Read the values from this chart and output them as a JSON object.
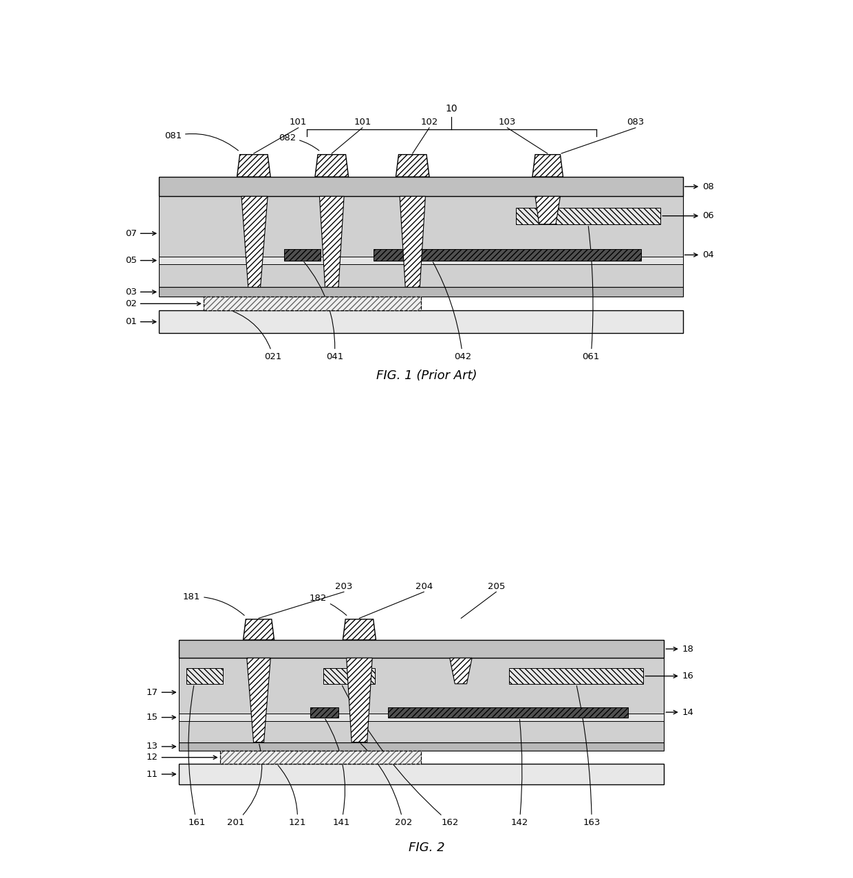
{
  "fig_width": 12.4,
  "fig_height": 12.76,
  "bg_color": "#ffffff",
  "fig1_title": "FIG. 1 (Prior Art)",
  "fig2_title": "FIG. 2",
  "colors": {
    "substrate_bg": "#d8d8d8",
    "layer_medium": "#c8c8c8",
    "layer_light": "#e0e0e0",
    "layer_dark": "#a8a8a8",
    "gate_metal_fc": "#f0f0f0",
    "via_fc": "#ffffff",
    "sd_metal_fc": "#585858",
    "ito_fc": "#e8e8e8",
    "black": "#000000",
    "white": "#ffffff",
    "base_fc": "#f0f0f0"
  }
}
